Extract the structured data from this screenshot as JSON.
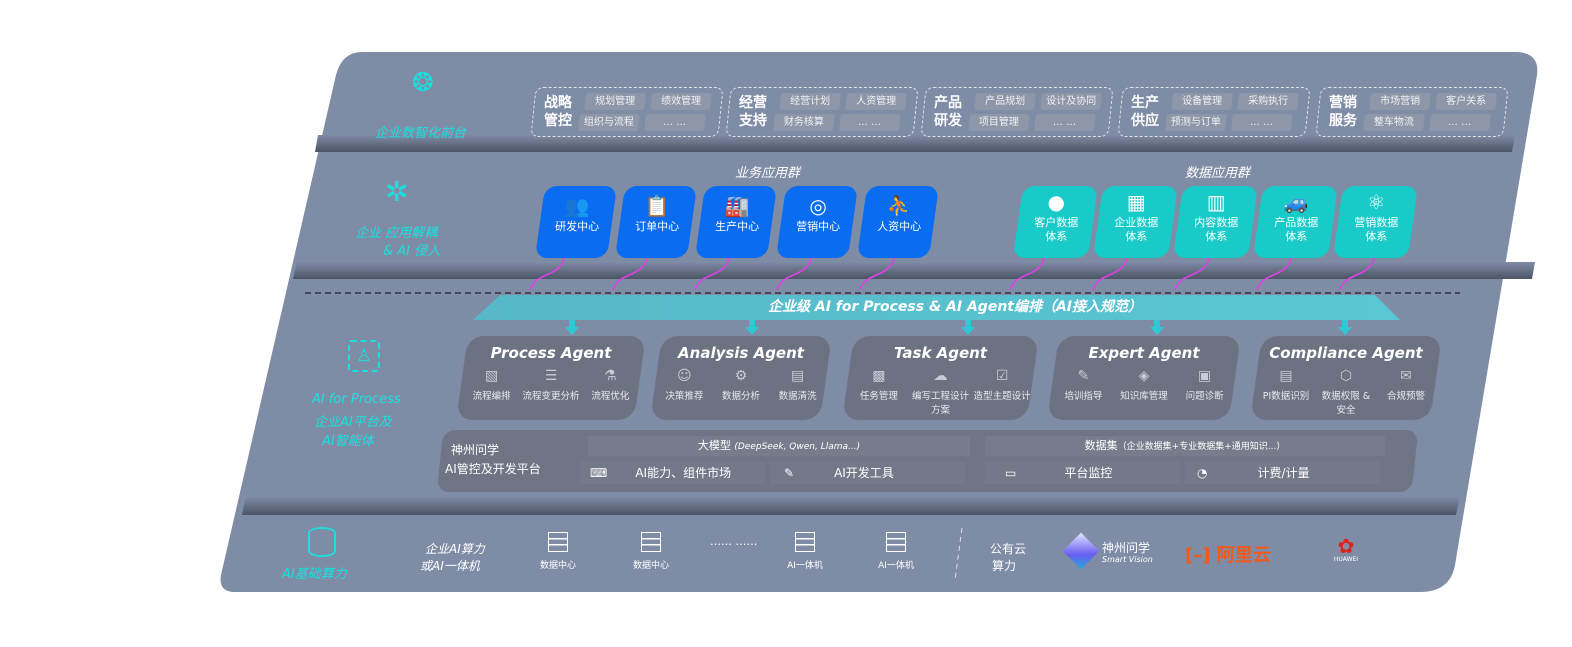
{
  "front": {
    "label": "企业数智化前台",
    "icon": "brain-icon",
    "groups": [
      {
        "title": [
          "战略",
          "管控"
        ],
        "items": [
          "规划管理",
          "绩效管理",
          "组织与流程",
          "… …"
        ]
      },
      {
        "title": [
          "经营",
          "支持"
        ],
        "items": [
          "经营计划",
          "人资管理",
          "财务核算",
          "… …"
        ]
      },
      {
        "title": [
          "产品",
          "研发"
        ],
        "items": [
          "产品规划",
          "设计及协同",
          "项目管理",
          "… …"
        ]
      },
      {
        "title": [
          "生产",
          "供应"
        ],
        "items": [
          "设备管理",
          "采购执行",
          "预测与订单",
          "… …"
        ]
      },
      {
        "title": [
          "营销",
          "服务"
        ],
        "items": [
          "市场营销",
          "客户关系",
          "整车物流",
          "… …"
        ]
      }
    ]
  },
  "apps": {
    "label": [
      "企业 应用解耦",
      "& AI 侵入"
    ],
    "icon": "molecule-icon",
    "business_title": "业务应用群",
    "data_title": "数据应用群",
    "business": [
      {
        "label": "研发中心",
        "icon": "users-icon"
      },
      {
        "label": "订单中心",
        "icon": "clipboard-icon"
      },
      {
        "label": "生产中心",
        "icon": "factory-icon"
      },
      {
        "label": "营销中心",
        "icon": "target-icon"
      },
      {
        "label": "人资中心",
        "icon": "person-icon"
      }
    ],
    "data": [
      {
        "label": [
          "客户数据",
          "体系"
        ],
        "icon": "user-icon"
      },
      {
        "label": [
          "企业数据",
          "体系"
        ],
        "icon": "building-icon"
      },
      {
        "label": [
          "内容数据",
          "体系"
        ],
        "icon": "books-icon"
      },
      {
        "label": [
          "产品数据",
          "体系"
        ],
        "icon": "car-icon"
      },
      {
        "label": [
          "营销数据",
          "体系"
        ],
        "icon": "atom-icon"
      }
    ]
  },
  "banner": "企业级 AI for Process & AI Agent编排（AI接入规范）",
  "ai_layer": {
    "label": [
      "AI for Process",
      "企业AI平台及",
      "AI智能体"
    ],
    "icon": "face-scan-icon",
    "agents": [
      {
        "title": "Process Agent",
        "items": [
          "流程编排",
          "流程变更分析",
          "流程优化"
        ]
      },
      {
        "title": "Analysis Agent",
        "items": [
          "决策推荐",
          "数据分析",
          "数据清洗"
        ]
      },
      {
        "title": "Task Agent",
        "items": [
          "任务管理",
          "编写工程设计方案",
          "造型主题设计"
        ]
      },
      {
        "title": "Expert Agent",
        "items": [
          "培训指导",
          "知识库管理",
          "问题诊断"
        ]
      },
      {
        "title": "Compliance Agent",
        "items": [
          "PI数据识别",
          "数据权限 & 安全",
          "合规预警"
        ]
      }
    ],
    "platform": {
      "label": [
        "神州问学",
        "AI管控及开发平台"
      ],
      "model": "大模型",
      "model_note": "(DeepSeek, Qwen, Llama...)",
      "dataset": "数据集",
      "dataset_note": "（企业数据集+专业数据集+通用知识...）",
      "tools": [
        "AI能力、组件市场",
        "AI开发工具",
        "平台监控",
        "计费/计量"
      ]
    }
  },
  "infra": {
    "label": "AI基础算力",
    "icon": "database-icon",
    "sub": [
      "企业AI算力",
      "或AI一体机"
    ],
    "servers": [
      "数据中心",
      "数据中心",
      "AI一体机",
      "AI一体机"
    ],
    "ellipsis": "…… ……",
    "public": [
      "公有云",
      "算力"
    ],
    "logos": {
      "szwx": "神州问学",
      "szwx_en": "Smart Vision",
      "aliyun": "阿里云",
      "huawei": "HUAWEI"
    }
  },
  "colors": {
    "panel": "#7f8ca6",
    "blue": "#0a6cf0",
    "teal": "#19cbc8",
    "cyan": "#19e0de",
    "magenta": "#e040e8"
  }
}
